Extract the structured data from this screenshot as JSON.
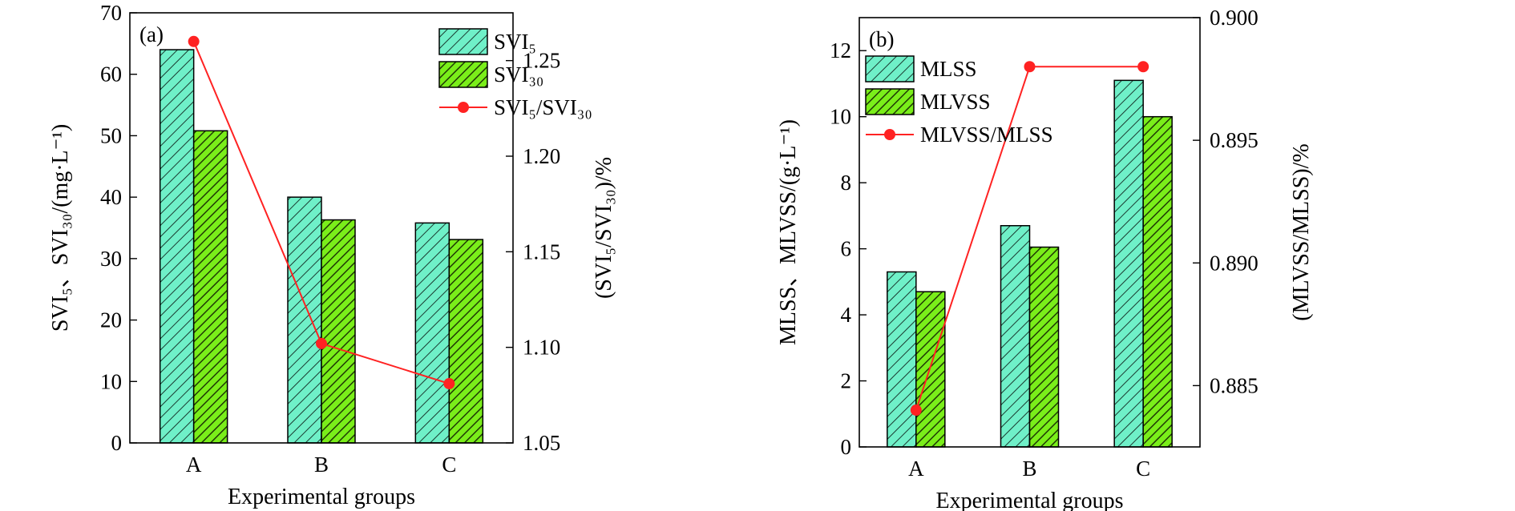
{
  "colors": {
    "bar1": "#6ff0c8",
    "bar2": "#7aee1a",
    "line": "#ff2222"
  },
  "chart_data": [
    {
      "panel": "(a)",
      "type": "bar",
      "categories": [
        "A",
        "B",
        "C"
      ],
      "xlabel": "Experimental groups",
      "ylabel": "SVI₅、SVI₃₀/(mg·L⁻¹)",
      "y2label": "(SVI₅/SVI₃₀)/%",
      "ylim": [
        0,
        70
      ],
      "y2lim": [
        1.05,
        1.275
      ],
      "yticks": [
        "0",
        "10",
        "20",
        "30",
        "40",
        "50",
        "60",
        "70"
      ],
      "y2ticks": [
        "1.05",
        "1.10",
        "1.15",
        "1.20",
        "1.25"
      ],
      "series": [
        {
          "name": "SVI₅",
          "values": [
            64,
            40,
            35.8
          ],
          "axis": "left",
          "kind": "bar"
        },
        {
          "name": "SVI₃₀",
          "values": [
            50.8,
            36.3,
            33.1
          ],
          "axis": "left",
          "kind": "bar"
        },
        {
          "name": "SVI₅/SVI₃₀",
          "values": [
            1.26,
            1.102,
            1.081
          ],
          "axis": "right",
          "kind": "line"
        }
      ],
      "legend_position": "top-right"
    },
    {
      "panel": "(b)",
      "type": "bar",
      "categories": [
        "A",
        "B",
        "C"
      ],
      "xlabel": "Experimental groups",
      "ylabel": "MLSS、MLVSS/(g·L⁻¹)",
      "y2label": "(MLVSS/MLSS)/%",
      "ylim": [
        0,
        13
      ],
      "y2lim": [
        0.8825,
        0.9
      ],
      "yticks": [
        "0",
        "2",
        "4",
        "6",
        "8",
        "10",
        "12"
      ],
      "y2ticks": [
        "0.885",
        "0.890",
        "0.895",
        "0.900"
      ],
      "series": [
        {
          "name": "MLSS",
          "values": [
            5.3,
            6.7,
            11.1
          ],
          "axis": "left",
          "kind": "bar"
        },
        {
          "name": "MLVSS",
          "values": [
            4.7,
            6.05,
            10
          ],
          "axis": "left",
          "kind": "bar"
        },
        {
          "name": "MLVSS/MLSS",
          "values": [
            0.884,
            0.898,
            0.898
          ],
          "axis": "right",
          "kind": "line"
        }
      ],
      "legend_position": "top-left"
    }
  ]
}
